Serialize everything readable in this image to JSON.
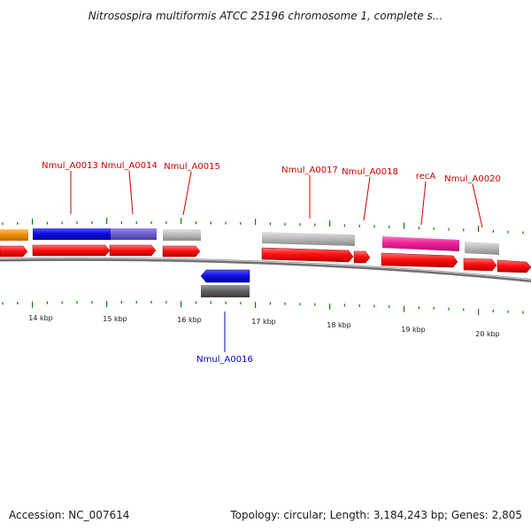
{
  "title": "Nitrosospira multiformis ATCC 25196 chromosome 1, complete s...",
  "footer": {
    "accession": "Accession: NC_007614",
    "summary": "Topology: circular; Length: 3,184,243 bp; Genes: 2,805"
  },
  "colors": {
    "label_forward": "#cc0000",
    "label_reverse": "#0000bb",
    "tick": "#008000",
    "cds": "#ff0000",
    "backbone": "#707070"
  },
  "scale_labels": [
    "14 kbp",
    "15 kbp",
    "16 kbp",
    "17 kbp",
    "18 kbp",
    "19 kbp",
    "20 kbp"
  ],
  "gene_labels": [
    {
      "text": "Nmul_A0013",
      "strand": "forward"
    },
    {
      "text": "Nmul_A0014",
      "strand": "forward"
    },
    {
      "text": "Nmul_A0015",
      "strand": "forward"
    },
    {
      "text": "Nmul_A0016",
      "strand": "reverse"
    },
    {
      "text": "Nmul_A0017",
      "strand": "forward"
    },
    {
      "text": "Nmul_A0018",
      "strand": "forward"
    },
    {
      "text": "recA",
      "strand": "forward"
    },
    {
      "text": "Nmul_A0020",
      "strand": "forward"
    }
  ],
  "feature_colors": {
    "orange": "#f0900a",
    "blue": "#1010e0",
    "slate": "#7060d0",
    "grey": "#b8b8b8",
    "dark_grey": "#606060",
    "pink": "#ee2299"
  }
}
